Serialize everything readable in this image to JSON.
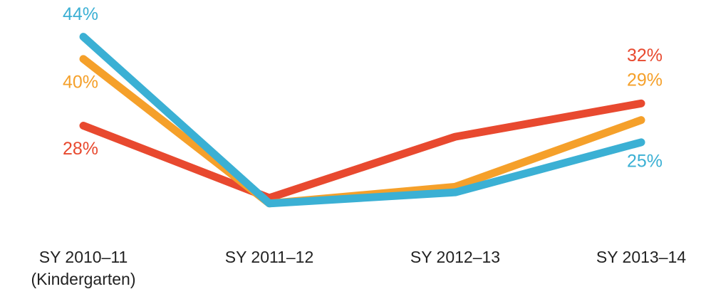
{
  "chart_data": {
    "type": "line",
    "categories": [
      "SY 2010–11\n(Kindergarten)",
      "SY 2011–12",
      "SY 2012–13",
      "SY 2013–14"
    ],
    "series": [
      {
        "color": "#e8492f",
        "values": [
          28,
          15,
          26,
          32
        ],
        "value_labels": [
          "28%",
          null,
          null,
          "32%"
        ]
      },
      {
        "color": "#f5a02a",
        "values": [
          40,
          14,
          17,
          29
        ],
        "value_labels": [
          "40%",
          null,
          null,
          "29%"
        ]
      },
      {
        "color": "#3bb0d4",
        "values": [
          44,
          14,
          16,
          25
        ],
        "value_labels": [
          "44%",
          null,
          null,
          "25%"
        ]
      }
    ],
    "ylim": [
      10,
      46
    ]
  }
}
